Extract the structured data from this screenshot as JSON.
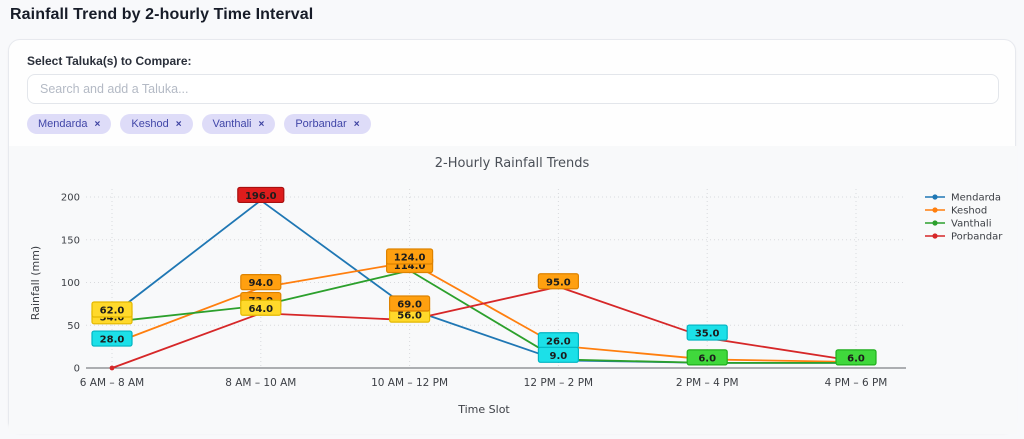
{
  "page": {
    "title": "Rainfall Trend by 2-hourly Time Interval"
  },
  "panel": {
    "select_label": "Select Taluka(s) to Compare:",
    "search_placeholder": "Search and add a Taluka...",
    "remove_icon": "×",
    "tags": [
      {
        "label": "Mendarda"
      },
      {
        "label": "Keshod"
      },
      {
        "label": "Vanthali"
      },
      {
        "label": "Porbandar"
      }
    ]
  },
  "chart_data": {
    "type": "line",
    "title": "2-Hourly Rainfall Trends",
    "xlabel": "Time Slot",
    "ylabel": "Rainfall (mm)",
    "ylim": [
      0,
      200
    ],
    "yticks": [
      0,
      50,
      100,
      150,
      200
    ],
    "grid": "dotted",
    "legend_position": "right",
    "categories": [
      "6 AM – 8 AM",
      "8 AM – 10 AM",
      "10 AM – 12 PM",
      "12 PM – 2 PM",
      "2 PM – 4 PM",
      "4 PM – 6 PM"
    ],
    "series": [
      {
        "name": "Mendarda",
        "color": "#1f77b4",
        "values": [
          62,
          196,
          69,
          9,
          6,
          6
        ],
        "labels": [
          "62.0",
          "196.0",
          "69.0",
          "9.0",
          "6.0",
          "6.0"
        ]
      },
      {
        "name": "Keshod",
        "color": "#ff7f0e",
        "values": [
          28,
          94,
          124,
          26,
          10,
          7
        ],
        "labels": [
          "28.0",
          "94.0",
          "124.0",
          "26.0",
          null,
          null
        ]
      },
      {
        "name": "Vanthali",
        "color": "#2ca02c",
        "values": [
          54,
          73,
          114,
          10,
          6,
          6
        ],
        "labels": [
          "54.0",
          "73.0",
          "114.0",
          null,
          null,
          null
        ]
      },
      {
        "name": "Porbandar",
        "color": "#d62728",
        "values": [
          0,
          64,
          56,
          95,
          35,
          8
        ],
        "labels": [
          null,
          "64.0",
          "56.0",
          "95.0",
          "35.0",
          null
        ]
      }
    ],
    "label_color_scale": [
      {
        "min": 150,
        "bg": "#dd1c1c",
        "border": "#a80f0f"
      },
      {
        "min": 65,
        "bg": "#ffa010",
        "border": "#de8300"
      },
      {
        "min": 50,
        "bg": "#ffd92b",
        "border": "#e3b800"
      },
      {
        "min": 9,
        "bg": "#1ce0e8",
        "border": "#00b4c2"
      },
      {
        "min": 0,
        "bg": "#40d83c",
        "border": "#1fae1c"
      }
    ],
    "label_text_color": "#1c1c1c"
  }
}
